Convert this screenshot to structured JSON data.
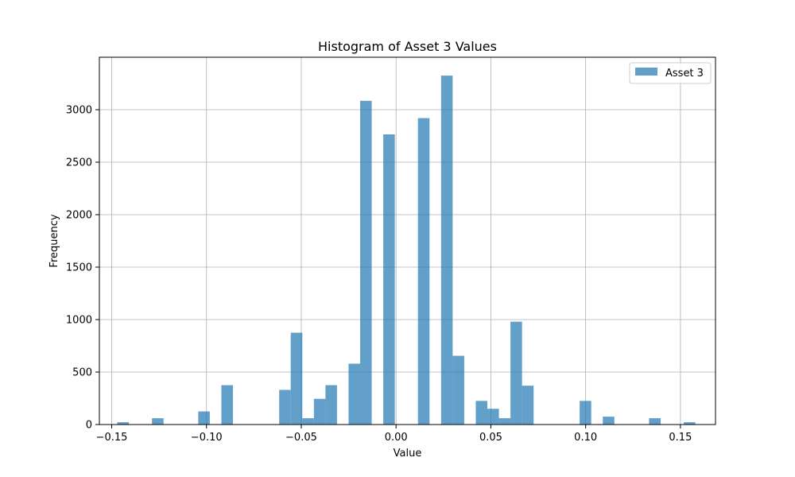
{
  "chart_data": {
    "type": "bar",
    "title": "Histogram of Asset 3 Values",
    "xlabel": "Value",
    "ylabel": "Frequency",
    "xlim": [
      -0.1565,
      0.1685
    ],
    "ylim": [
      0,
      3500
    ],
    "grid": true,
    "legend_position": "top-right",
    "bar_color": "#1f77b4",
    "bar_opacity": 0.7,
    "bin_width": 0.0061,
    "x_ticks": [
      -0.15,
      -0.1,
      -0.05,
      0.0,
      0.05,
      0.1,
      0.15
    ],
    "x_tick_labels": [
      "−0.15",
      "−0.10",
      "−0.05",
      "0.00",
      "0.05",
      "0.10",
      "0.15"
    ],
    "y_ticks": [
      0,
      500,
      1000,
      1500,
      2000,
      2500,
      3000
    ],
    "y_tick_labels": [
      "0",
      "500",
      "1000",
      "1500",
      "2000",
      "2500",
      "3000"
    ],
    "series": [
      {
        "name": "Asset 3",
        "bins": [
          {
            "x": -0.144,
            "count": 22
          },
          {
            "x": -0.1257,
            "count": 60
          },
          {
            "x": -0.1013,
            "count": 125
          },
          {
            "x": -0.0891,
            "count": 375
          },
          {
            "x": -0.0586,
            "count": 330
          },
          {
            "x": -0.0525,
            "count": 875
          },
          {
            "x": -0.0464,
            "count": 60
          },
          {
            "x": -0.0403,
            "count": 245
          },
          {
            "x": -0.0342,
            "count": 375
          },
          {
            "x": -0.022,
            "count": 580
          },
          {
            "x": -0.0159,
            "count": 3085
          },
          {
            "x": -0.0037,
            "count": 2765
          },
          {
            "x": 0.0146,
            "count": 2920
          },
          {
            "x": 0.0268,
            "count": 3325
          },
          {
            "x": 0.0329,
            "count": 655
          },
          {
            "x": 0.0451,
            "count": 225
          },
          {
            "x": 0.0512,
            "count": 150
          },
          {
            "x": 0.0573,
            "count": 60
          },
          {
            "x": 0.0634,
            "count": 980
          },
          {
            "x": 0.0695,
            "count": 370
          },
          {
            "x": 0.0999,
            "count": 225
          },
          {
            "x": 0.1121,
            "count": 75
          },
          {
            "x": 0.1365,
            "count": 60
          },
          {
            "x": 0.1548,
            "count": 22
          }
        ]
      }
    ]
  }
}
